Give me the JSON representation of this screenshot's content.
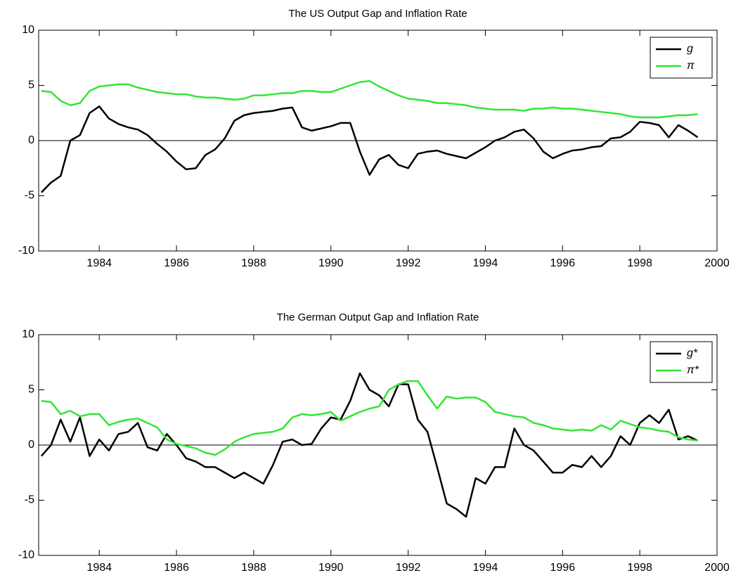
{
  "chart_data": [
    {
      "type": "line",
      "title": "The US Output Gap and Inflation Rate",
      "x": [
        1982.5,
        1982.75,
        1983,
        1983.25,
        1983.5,
        1983.75,
        1984,
        1984.25,
        1984.5,
        1984.75,
        1985,
        1985.25,
        1985.5,
        1985.75,
        1986,
        1986.25,
        1986.5,
        1986.75,
        1987,
        1987.25,
        1987.5,
        1987.75,
        1988,
        1988.25,
        1988.5,
        1988.75,
        1989,
        1989.25,
        1989.5,
        1989.75,
        1990,
        1990.25,
        1990.5,
        1990.75,
        1991,
        1991.25,
        1991.5,
        1991.75,
        1992,
        1992.25,
        1992.5,
        1992.75,
        1993,
        1993.25,
        1993.5,
        1993.75,
        1994,
        1994.25,
        1994.5,
        1994.75,
        1995,
        1995.25,
        1995.5,
        1995.75,
        1996,
        1996.25,
        1996.5,
        1996.75,
        1997,
        1997.25,
        1997.5,
        1997.75,
        1998,
        1998.25,
        1998.5,
        1998.75,
        1999,
        1999.25,
        1999.5
      ],
      "series": [
        {
          "name": "g",
          "color": "#000000",
          "values": [
            -4.7,
            -3.8,
            -3.2,
            0,
            0.5,
            2.5,
            3.1,
            2.0,
            1.5,
            1.2,
            1.0,
            0.5,
            -0.3,
            -1.0,
            -1.9,
            -2.6,
            -2.5,
            -1.3,
            -0.8,
            0.2,
            1.8,
            2.3,
            2.5,
            2.6,
            2.7,
            2.9,
            3.0,
            1.2,
            0.9,
            1.1,
            1.3,
            1.6,
            1.6,
            -1.0,
            -3.1,
            -1.7,
            -1.3,
            -2.2,
            -2.5,
            -1.2,
            -1.0,
            -0.9,
            -1.2,
            -1.4,
            -1.6,
            -1.1,
            -0.6,
            0,
            0.3,
            0.8,
            1.0,
            0.2,
            -1.0,
            -1.6,
            -1.2,
            -0.9,
            -0.8,
            -0.6,
            -0.5,
            0.2,
            0.3,
            0.8,
            1.7,
            1.6,
            1.4,
            0.3,
            1.4,
            0.9,
            0.3
          ]
        },
        {
          "name": "π",
          "color": "#33e633",
          "values": [
            4.5,
            4.4,
            3.6,
            3.2,
            3.4,
            4.5,
            4.9,
            5.0,
            5.1,
            5.1,
            4.8,
            4.6,
            4.4,
            4.3,
            4.2,
            4.2,
            4.0,
            3.9,
            3.9,
            3.8,
            3.7,
            3.8,
            4.1,
            4.1,
            4.2,
            4.3,
            4.3,
            4.5,
            4.5,
            4.4,
            4.4,
            4.7,
            5.0,
            5.3,
            5.4,
            4.9,
            4.5,
            4.1,
            3.8,
            3.7,
            3.6,
            3.4,
            3.4,
            3.3,
            3.2,
            3.0,
            2.9,
            2.8,
            2.8,
            2.8,
            2.7,
            2.9,
            2.9,
            3.0,
            2.9,
            2.9,
            2.8,
            2.7,
            2.6,
            2.5,
            2.4,
            2.2,
            2.1,
            2.1,
            2.1,
            2.2,
            2.3,
            2.3,
            2.4
          ]
        }
      ],
      "xlim": [
        1982.43,
        2000
      ],
      "ylim": [
        -10,
        10
      ],
      "xticks": [
        1984,
        1986,
        1988,
        1990,
        1992,
        1994,
        1996,
        1998,
        2000
      ],
      "yticks": [
        -10,
        -5,
        0,
        5,
        10
      ],
      "hline": 0,
      "legend": "upper right"
    },
    {
      "type": "line",
      "title": "The German Output Gap and Inflation Rate",
      "x": [
        1982.5,
        1982.75,
        1983,
        1983.25,
        1983.5,
        1983.75,
        1984,
        1984.25,
        1984.5,
        1984.75,
        1985,
        1985.25,
        1985.5,
        1985.75,
        1986,
        1986.25,
        1986.5,
        1986.75,
        1987,
        1987.25,
        1987.5,
        1987.75,
        1988,
        1988.25,
        1988.5,
        1988.75,
        1989,
        1989.25,
        1989.5,
        1989.75,
        1990,
        1990.25,
        1990.5,
        1990.75,
        1991,
        1991.25,
        1991.5,
        1991.75,
        1992,
        1992.25,
        1992.5,
        1992.75,
        1993,
        1993.25,
        1993.5,
        1993.75,
        1994,
        1994.25,
        1994.5,
        1994.75,
        1995,
        1995.25,
        1995.5,
        1995.75,
        1996,
        1996.25,
        1996.5,
        1996.75,
        1997,
        1997.25,
        1997.5,
        1997.75,
        1998,
        1998.25,
        1998.5,
        1998.75,
        1999,
        1999.25,
        1999.5
      ],
      "series": [
        {
          "name": "g*",
          "color": "#000000",
          "values": [
            -1.0,
            0.0,
            2.3,
            0.3,
            2.5,
            -1.0,
            0.5,
            -0.5,
            1.0,
            1.2,
            2.0,
            -0.2,
            -0.5,
            1.0,
            0.0,
            -1.2,
            -1.5,
            -2.0,
            -2.0,
            -2.5,
            -3.0,
            -2.5,
            -3.0,
            -3.5,
            -1.8,
            0.3,
            0.5,
            0.0,
            0.1,
            1.5,
            2.5,
            2.3,
            4.0,
            6.5,
            5.0,
            4.5,
            3.5,
            5.5,
            5.5,
            2.3,
            1.2,
            -2.0,
            -5.3,
            -5.8,
            -6.5,
            -3.0,
            -3.5,
            -2.0,
            -2.0,
            1.5,
            0.0,
            -0.5,
            -1.5,
            -2.5,
            -2.5,
            -1.8,
            -2.0,
            -1.0,
            -2.0,
            -1.0,
            0.8,
            0.0,
            2.0,
            2.7,
            2.0,
            3.2,
            0.5,
            0.8,
            0.4
          ]
        },
        {
          "name": "π*",
          "color": "#33e633",
          "values": [
            4.0,
            3.9,
            2.8,
            3.1,
            2.6,
            2.8,
            2.8,
            1.8,
            2.1,
            2.3,
            2.4,
            2.0,
            1.6,
            0.5,
            0.1,
            -0.1,
            -0.3,
            -0.7,
            -0.9,
            -0.4,
            0.3,
            0.7,
            1.0,
            1.1,
            1.2,
            1.5,
            2.5,
            2.8,
            2.7,
            2.8,
            3.0,
            2.2,
            2.6,
            3.0,
            3.3,
            3.5,
            5.0,
            5.5,
            5.8,
            5.8,
            4.5,
            3.3,
            4.4,
            4.2,
            4.3,
            4.3,
            3.9,
            3.0,
            2.8,
            2.6,
            2.5,
            2.0,
            1.8,
            1.5,
            1.4,
            1.3,
            1.4,
            1.3,
            1.8,
            1.4,
            2.2,
            1.9,
            1.6,
            1.5,
            1.3,
            1.2,
            0.7,
            0.5,
            0.4
          ]
        }
      ],
      "xlim": [
        1982.43,
        2000
      ],
      "ylim": [
        -10,
        10
      ],
      "xticks": [
        1984,
        1986,
        1988,
        1990,
        1992,
        1994,
        1996,
        1998,
        2000
      ],
      "yticks": [
        -10,
        -5,
        0,
        5,
        10
      ],
      "hline": 0,
      "legend": "upper right"
    }
  ]
}
